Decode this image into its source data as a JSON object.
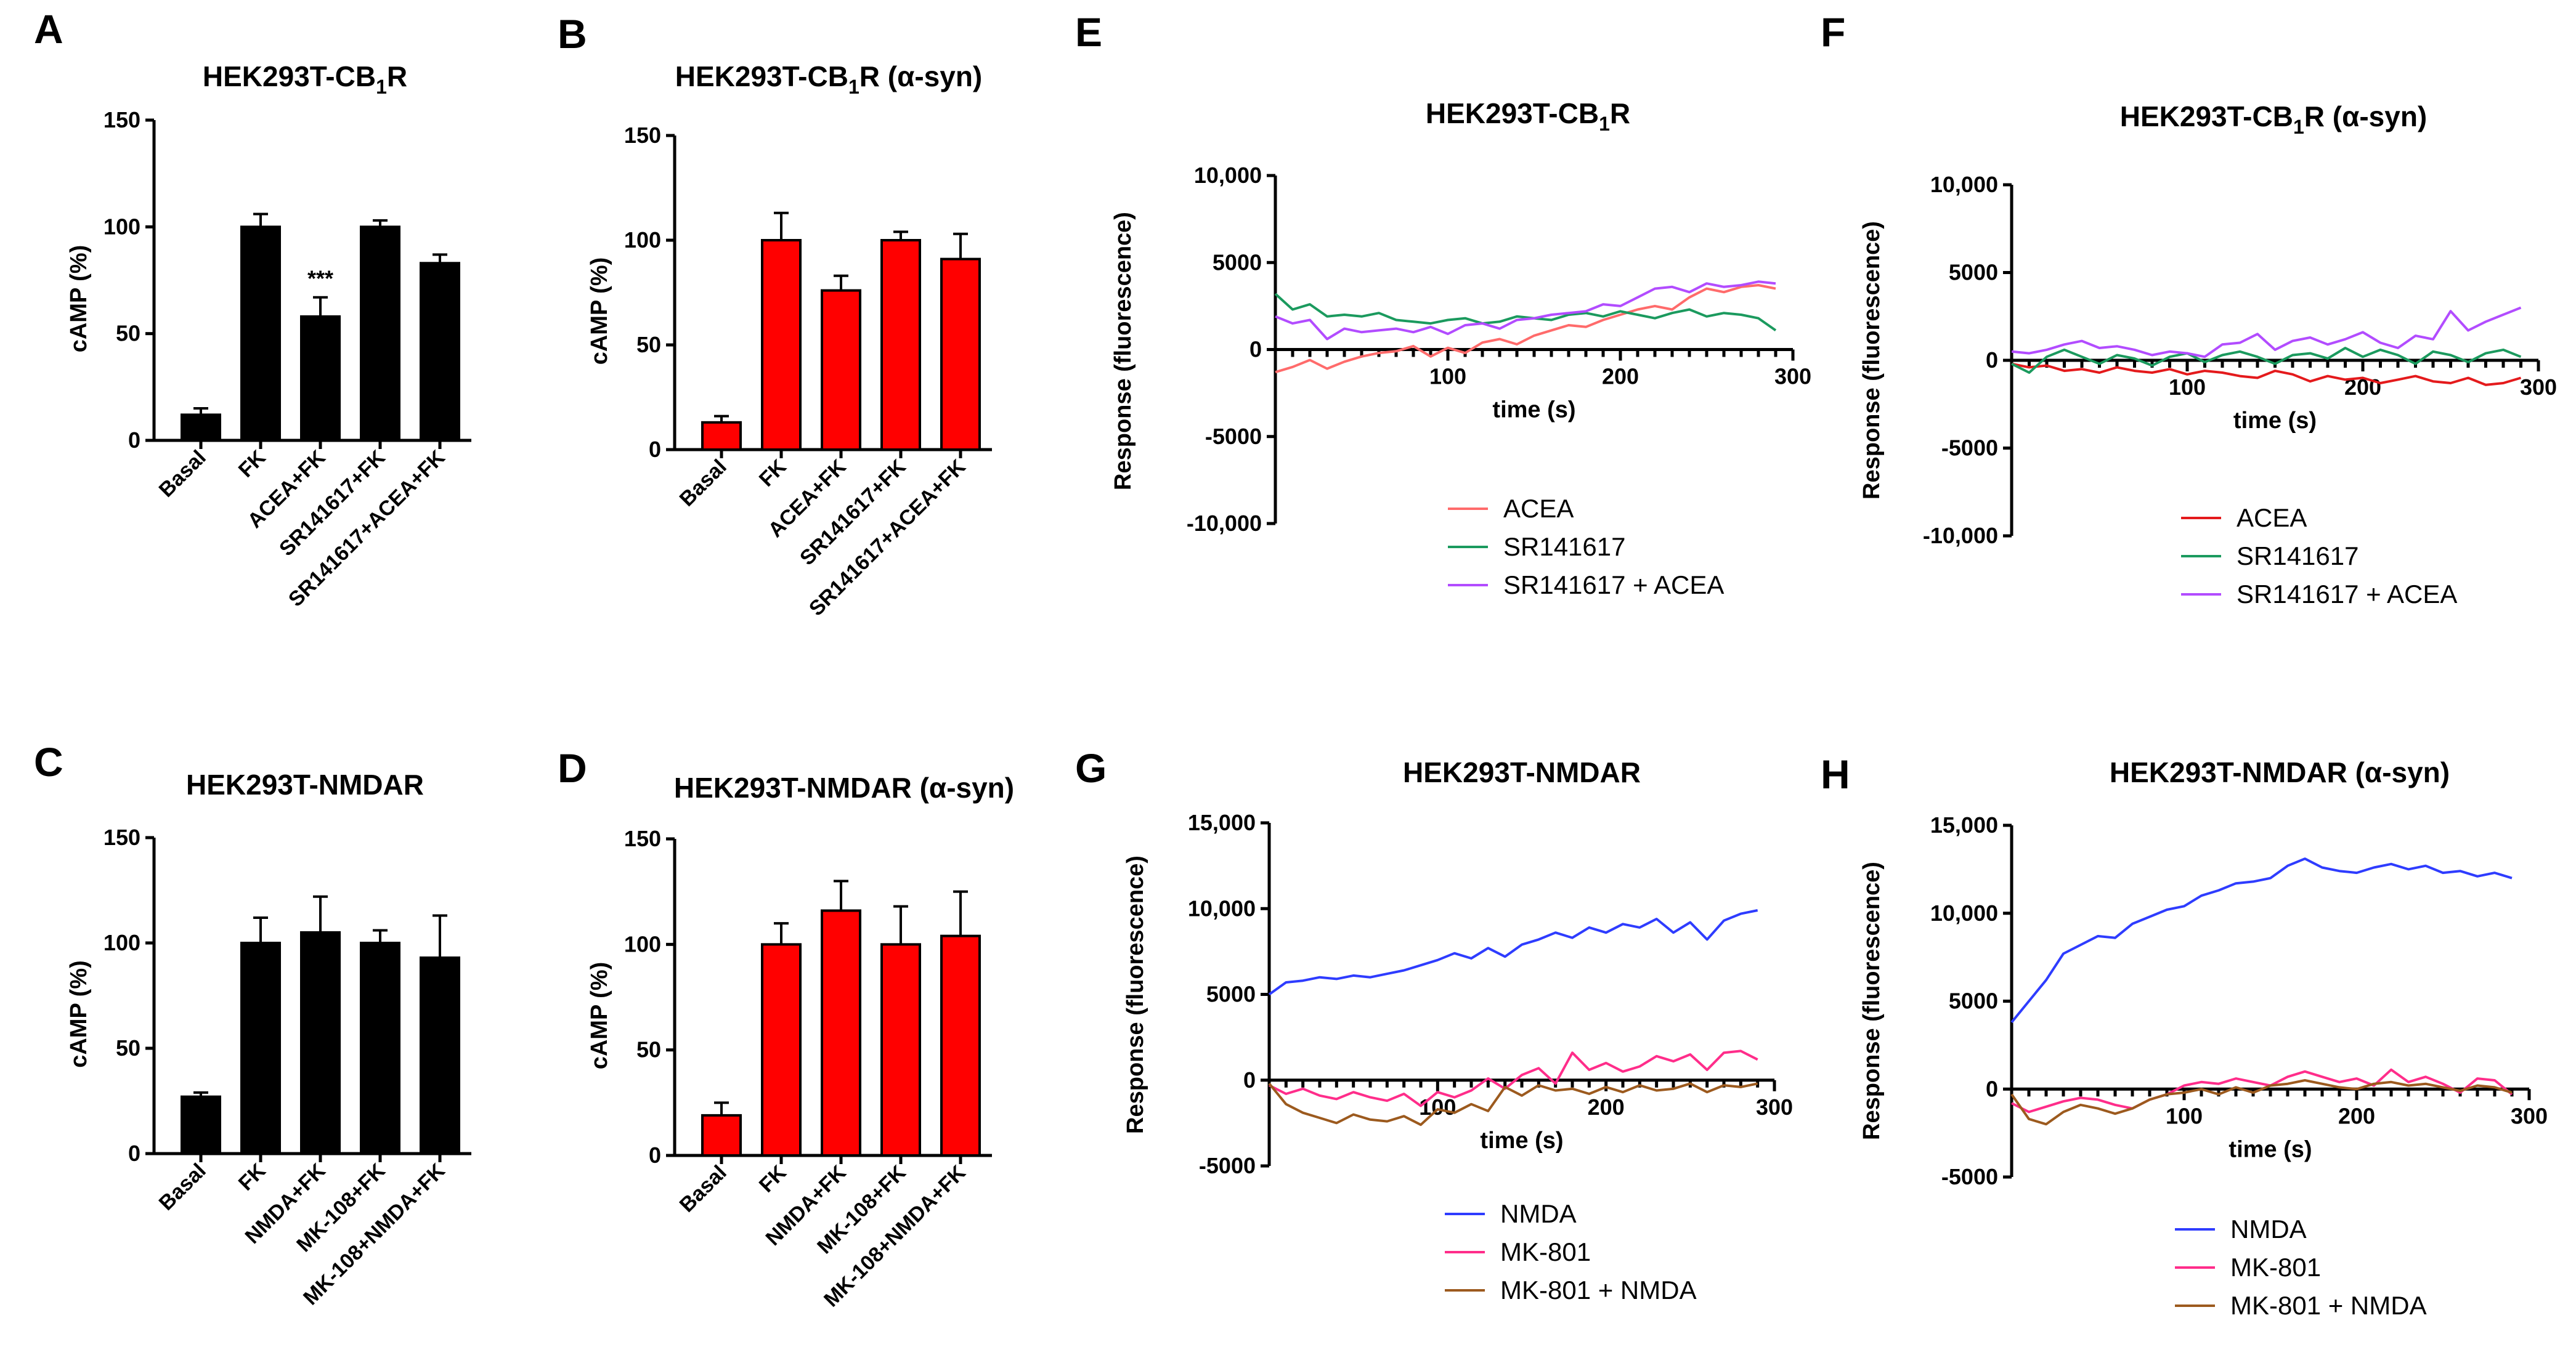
{
  "colors": {
    "black": "#000000",
    "red": "#ff0000",
    "acea": "#ff6b6b",
    "acea_strong": "#e41a1c",
    "sr": "#1b9a5e",
    "combo": "#b24cff",
    "nmda": "#2e3cff",
    "mk": "#ff2d8a",
    "mkn": "#9c5a1e"
  },
  "chart_data": [
    {
      "panel": "A",
      "type": "bar",
      "title": "HEK293T-CB",
      "title_sub": "1",
      "title_rest": "R",
      "ylabel": "cAMP (%)",
      "ylim": [
        0,
        150
      ],
      "yticks": [
        "0",
        "50",
        "100",
        "150"
      ],
      "bar_color": "#000000",
      "categories": [
        "Basal",
        "FK",
        "ACEA+FK",
        "SR141617+FK",
        "SR141617+ACEA+FK"
      ],
      "values": [
        12,
        100,
        58,
        100,
        83
      ],
      "errors": [
        3,
        6,
        9,
        3,
        4
      ],
      "annotation": {
        "index": 2,
        "text": "***"
      }
    },
    {
      "panel": "B",
      "type": "bar",
      "title": "HEK293T-CB",
      "title_sub": "1",
      "title_rest": "R (α-syn)",
      "ylabel": "cAMP (%)",
      "ylim": [
        0,
        150
      ],
      "yticks": [
        "0",
        "50",
        "100",
        "150"
      ],
      "bar_color": "#ff0000",
      "categories": [
        "Basal",
        "FK",
        "ACEA+FK",
        "SR141617+FK",
        "SR141617+ACEA+FK"
      ],
      "values": [
        13,
        100,
        76,
        100,
        91
      ],
      "errors": [
        3,
        13,
        7,
        4,
        12
      ]
    },
    {
      "panel": "C",
      "type": "bar",
      "title": "HEK293T-NMDAR",
      "ylabel": "cAMP (%)",
      "ylim": [
        0,
        150
      ],
      "yticks": [
        "0",
        "50",
        "100",
        "150"
      ],
      "bar_color": "#000000",
      "categories": [
        "Basal",
        "FK",
        "NMDA+FK",
        "MK-108+FK",
        "MK-108+NMDA+FK"
      ],
      "values": [
        27,
        100,
        105,
        100,
        93
      ],
      "errors": [
        2,
        12,
        17,
        6,
        20
      ]
    },
    {
      "panel": "D",
      "type": "bar",
      "title": "HEK293T-NMDAR (α-syn)",
      "ylabel": "cAMP (%)",
      "ylim": [
        0,
        150
      ],
      "yticks": [
        "0",
        "50",
        "100",
        "150"
      ],
      "bar_color": "#ff0000",
      "categories": [
        "Basal",
        "FK",
        "NMDA+FK",
        "MK-108+FK",
        "MK-108+NMDA+FK"
      ],
      "values": [
        19,
        100,
        116,
        100,
        104
      ],
      "errors": [
        6,
        10,
        14,
        18,
        21
      ]
    },
    {
      "panel": "E",
      "type": "line",
      "title": "HEK293T-CB",
      "title_sub": "1",
      "title_rest": "R",
      "ylabel": "Response (fluorescence)",
      "xlabel": "time (s)",
      "ylim": [
        -10000,
        10000
      ],
      "yticks": [
        "-10,000",
        "-5000",
        "0",
        "5000",
        "10,000"
      ],
      "xlim": [
        0,
        300
      ],
      "xticks": [
        "100",
        "200",
        "300"
      ],
      "x_step": 10,
      "series": [
        {
          "name": "ACEA",
          "color": "#ff6b6b",
          "values": [
            -1300,
            -1000,
            -600,
            -1100,
            -700,
            -400,
            -200,
            -100,
            200,
            -400,
            100,
            -200,
            400,
            600,
            300,
            800,
            1100,
            1400,
            1300,
            1700,
            2000,
            2300,
            2500,
            2300,
            3000,
            3500,
            3300,
            3600,
            3700,
            3500
          ]
        },
        {
          "name": "SR141617",
          "color": "#1b9a5e",
          "values": [
            3200,
            2300,
            2600,
            1900,
            2000,
            1900,
            2100,
            1700,
            1600,
            1500,
            1700,
            1800,
            1500,
            1600,
            1900,
            1800,
            1700,
            2000,
            2100,
            1900,
            2200,
            2000,
            1800,
            2100,
            2300,
            1900,
            2100,
            2000,
            1800,
            1100
          ]
        },
        {
          "name": "SR141617 + ACEA",
          "color": "#b24cff",
          "values": [
            1900,
            1500,
            1700,
            600,
            1200,
            1000,
            1100,
            1200,
            1000,
            1300,
            900,
            1400,
            1500,
            1200,
            1700,
            1800,
            2000,
            2100,
            2200,
            2600,
            2500,
            3000,
            3500,
            3600,
            3300,
            3800,
            3600,
            3700,
            3900,
            3800
          ]
        }
      ]
    },
    {
      "panel": "F",
      "type": "line",
      "title": "HEK293T-CB",
      "title_sub": "1",
      "title_rest": "R (α-syn)",
      "ylabel": "Response (fluorescence)",
      "xlabel": "time (s)",
      "ylim": [
        -10000,
        10000
      ],
      "yticks": [
        "-10,000",
        "-5000",
        "0",
        "5000",
        "10,000"
      ],
      "xlim": [
        0,
        300
      ],
      "xticks": [
        "100",
        "200",
        "300"
      ],
      "x_step": 10,
      "series": [
        {
          "name": "ACEA",
          "color": "#e41a1c",
          "values": [
            -200,
            -400,
            -300,
            -600,
            -500,
            -700,
            -400,
            -600,
            -700,
            -500,
            -800,
            -600,
            -700,
            -900,
            -1000,
            -600,
            -800,
            -1200,
            -900,
            -1100,
            -1000,
            -1300,
            -1100,
            -900,
            -1200,
            -1300,
            -1000,
            -1400,
            -1300,
            -1000
          ]
        },
        {
          "name": "SR141617",
          "color": "#1b9a5e",
          "values": [
            -200,
            -700,
            200,
            600,
            200,
            -200,
            300,
            100,
            -300,
            200,
            400,
            -100,
            300,
            500,
            200,
            -200,
            300,
            400,
            100,
            700,
            200,
            600,
            300,
            -200,
            500,
            300,
            -100,
            400,
            600,
            200
          ]
        },
        {
          "name": "SR141617 + ACEA",
          "color": "#b24cff",
          "values": [
            500,
            400,
            600,
            900,
            1100,
            700,
            800,
            600,
            300,
            500,
            400,
            200,
            900,
            1000,
            1500,
            600,
            1100,
            1300,
            900,
            1200,
            1600,
            1000,
            700,
            1400,
            1200,
            2800,
            1700,
            2200,
            2600,
            3000
          ]
        }
      ]
    },
    {
      "panel": "G",
      "type": "line",
      "title": "HEK293T-NMDAR",
      "ylabel": "Response (fluorescence)",
      "xlabel": "time (s)",
      "ylim": [
        -5000,
        15000
      ],
      "yticks": [
        "-5000",
        "0",
        "5000",
        "10,000",
        "15,000"
      ],
      "xlim": [
        0,
        300
      ],
      "xticks": [
        "100",
        "200",
        "300"
      ],
      "x_step": 10,
      "series": [
        {
          "name": "NMDA",
          "color": "#2e3cff",
          "values": [
            5000,
            5700,
            5800,
            6000,
            5900,
            6100,
            6000,
            6200,
            6400,
            6700,
            7000,
            7400,
            7100,
            7700,
            7200,
            7900,
            8200,
            8600,
            8300,
            8900,
            8600,
            9100,
            8900,
            9400,
            8600,
            9200,
            8200,
            9300,
            9700,
            9900
          ]
        },
        {
          "name": "MK-801",
          "color": "#ff2d8a",
          "values": [
            -300,
            -800,
            -500,
            -900,
            -1100,
            -700,
            -1000,
            -1200,
            -800,
            -1500,
            -700,
            -1000,
            -600,
            100,
            -500,
            300,
            700,
            -200,
            1600,
            600,
            1000,
            500,
            800,
            1400,
            1100,
            1500,
            600,
            1600,
            1700,
            1200
          ]
        },
        {
          "name": "MK-801 + NMDA",
          "color": "#9c5a1e",
          "values": [
            -200,
            -1400,
            -1900,
            -2200,
            -2500,
            -2000,
            -2300,
            -2400,
            -2100,
            -2600,
            -1700,
            -1900,
            -1400,
            -1800,
            -400,
            -900,
            -300,
            -600,
            -500,
            -800,
            -400,
            -700,
            -300,
            -600,
            -500,
            -200,
            -700,
            -300,
            -400,
            -200
          ]
        }
      ]
    },
    {
      "panel": "H",
      "type": "line",
      "title": "HEK293T-NMDAR (α-syn)",
      "ylabel": "Response (fluorescence)",
      "xlabel": "time (s)",
      "ylim": [
        -5000,
        15000
      ],
      "yticks": [
        "-5000",
        "0",
        "5000",
        "10,000",
        "15,000"
      ],
      "xlim": [
        0,
        300
      ],
      "xticks": [
        "100",
        "200",
        "300"
      ],
      "x_step": 10,
      "series": [
        {
          "name": "NMDA",
          "color": "#2e3cff",
          "values": [
            3800,
            5000,
            6200,
            7700,
            8200,
            8700,
            8600,
            9400,
            9800,
            10200,
            10400,
            11000,
            11300,
            11700,
            11800,
            12000,
            12700,
            13100,
            12600,
            12400,
            12300,
            12600,
            12800,
            12500,
            12700,
            12300,
            12400,
            12100,
            12300,
            12000
          ]
        },
        {
          "name": "MK-801",
          "color": "#ff2d8a",
          "values": [
            -800,
            -1300,
            -1000,
            -700,
            -500,
            -600,
            -900,
            -1100,
            -600,
            -300,
            200,
            400,
            300,
            600,
            400,
            200,
            700,
            1000,
            700,
            400,
            600,
            200,
            1100,
            400,
            700,
            300,
            -200,
            600,
            500,
            -300
          ]
        },
        {
          "name": "MK-801 + NMDA",
          "color": "#9c5a1e",
          "values": [
            -300,
            -1700,
            -2000,
            -1300,
            -900,
            -1100,
            -1400,
            -1100,
            -600,
            -300,
            -200,
            0,
            -300,
            100,
            -200,
            200,
            300,
            500,
            300,
            100,
            0,
            300,
            400,
            200,
            300,
            100,
            -100,
            200,
            100,
            -200
          ]
        }
      ]
    }
  ]
}
